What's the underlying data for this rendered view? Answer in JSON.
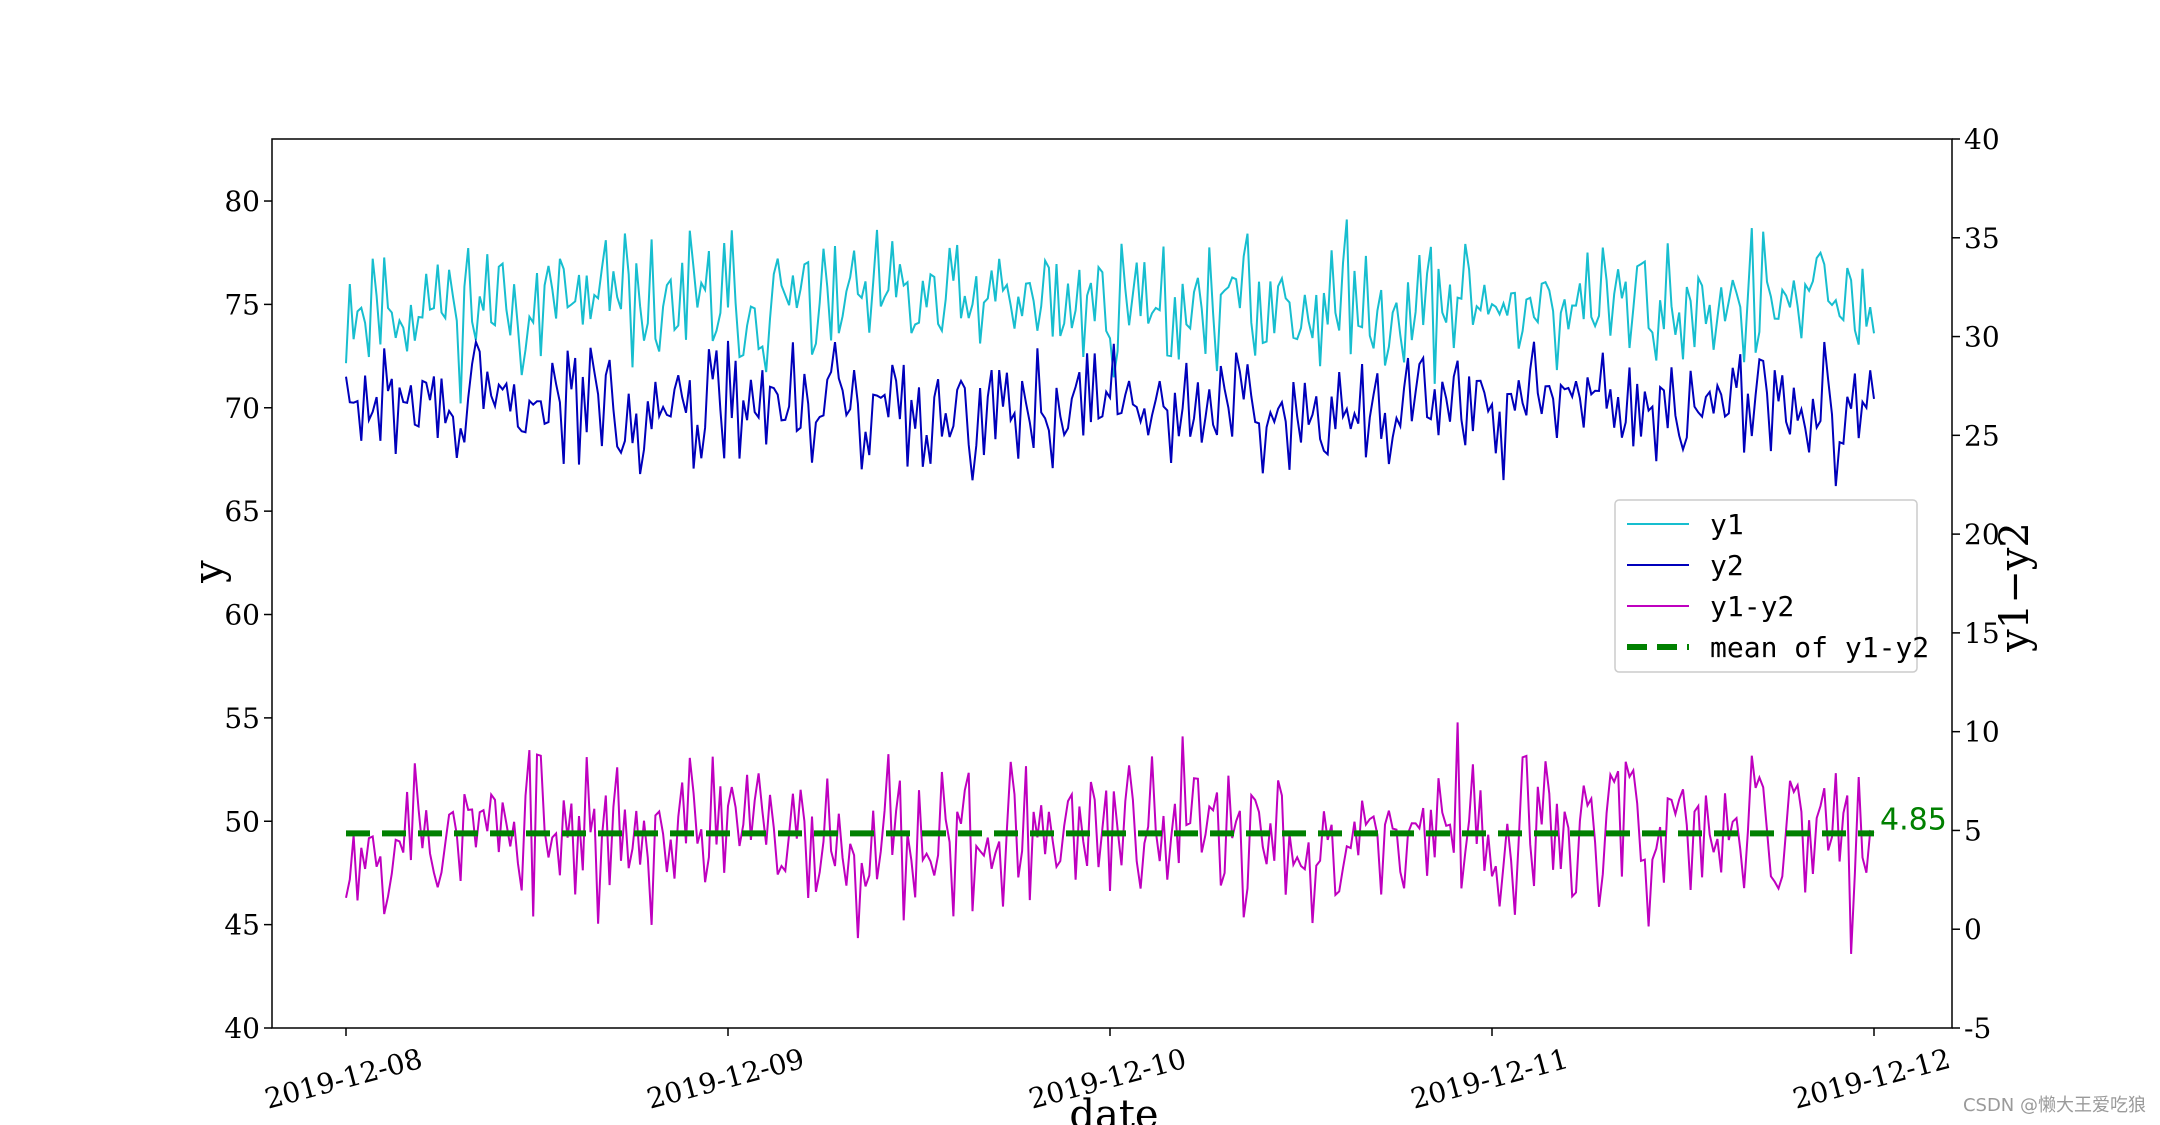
{
  "chart_data": {
    "type": "line",
    "title": "",
    "xlabel": "date",
    "ylabel_left": "y",
    "ylabel_right": "y1−y2",
    "x_range": [
      "2019-12-08",
      "2019-12-12"
    ],
    "x_ticks": [
      "2019-12-08",
      "2019-12-09",
      "2019-12-10",
      "2019-12-11",
      "2019-12-12"
    ],
    "ylim_left": [
      40,
      83
    ],
    "yticks_left": [
      40,
      45,
      50,
      55,
      60,
      65,
      70,
      75,
      80
    ],
    "ylim_right": [
      -5,
      40
    ],
    "yticks_right": [
      -5,
      0,
      5,
      10,
      15,
      20,
      25,
      30,
      35,
      40
    ],
    "legend_position": "center-right",
    "annotation": "4.85",
    "n_points": 401,
    "series": [
      {
        "name": "y1",
        "axis": "left",
        "color": "#17becf",
        "center": 75.0,
        "spread": 2.2,
        "seed": 11
      },
      {
        "name": "y2",
        "axis": "left",
        "color": "#0000bb",
        "center": 70.1,
        "spread": 2.0,
        "seed": 29
      },
      {
        "name": "y1-y2",
        "axis": "right",
        "color": "#bf00bf",
        "center": 4.85,
        "spread": 2.9,
        "seed": 53
      },
      {
        "name": "mean of y1-y2",
        "axis": "right",
        "color": "#008000",
        "value": 4.85,
        "style": "dashed"
      }
    ]
  },
  "watermark": "CSDN @懒大王爱吃狼"
}
